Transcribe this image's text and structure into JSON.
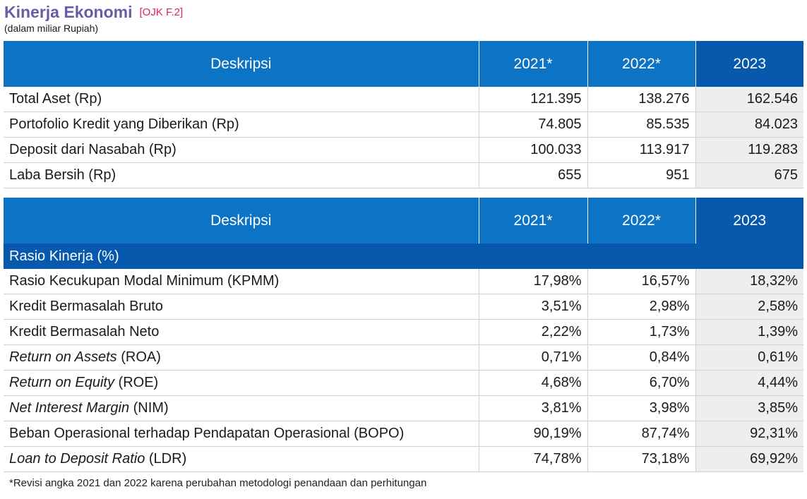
{
  "header": {
    "title": "Kinerja Ekonomi",
    "tag": "[OJK F.2]",
    "subtitle": "(dalam miliar Rupiah)"
  },
  "table1": {
    "columns": [
      "Deskripsi",
      "2021*",
      "2022*",
      "2023"
    ],
    "rows": [
      {
        "label": "Total Aset (Rp)",
        "values": [
          "121.395",
          "138.276",
          "162.546"
        ]
      },
      {
        "label": "Portofolio Kredit yang Diberikan (Rp)",
        "values": [
          "74.805",
          "85.535",
          "84.023"
        ]
      },
      {
        "label": "Deposit dari Nasabah (Rp)",
        "values": [
          "100.033",
          "113.917",
          "119.283"
        ]
      },
      {
        "label": "Laba Bersih (Rp)",
        "values": [
          "655",
          "951",
          "675"
        ]
      }
    ]
  },
  "table2": {
    "columns": [
      "Deskripsi",
      "2021*",
      "2022*",
      "2023"
    ],
    "section_label": "Rasio Kinerja (%)",
    "rows": [
      {
        "label": "Rasio Kecukupan Modal Minimum (KPMM)",
        "values": [
          "17,98%",
          "16,57%",
          "18,32%"
        ]
      },
      {
        "label": "Kredit Bermasalah Bruto",
        "values": [
          "3,51%",
          "2,98%",
          "2,58%"
        ]
      },
      {
        "label": "Kredit Bermasalah Neto",
        "values": [
          "2,22%",
          "1,73%",
          "1,39%"
        ]
      },
      {
        "label_italic": "Return on Assets",
        "label_rest": " (ROA)",
        "values": [
          "0,71%",
          "0,84%",
          "0,61%"
        ]
      },
      {
        "label_italic": "Return on Equity",
        "label_rest": " (ROE)",
        "values": [
          "4,68%",
          "6,70%",
          "4,44%"
        ]
      },
      {
        "label_italic": "Net Interest Margin",
        "label_rest": " (NIM)",
        "values": [
          "3,81%",
          "3,98%",
          "3,85%"
        ]
      },
      {
        "label": "Beban Operasional terhadap Pendapatan Operasional (BOPO)",
        "values": [
          "90,19%",
          "87,74%",
          "92,31%"
        ]
      },
      {
        "label_italic": "Loan to Deposit Ratio",
        "label_rest": " (LDR)",
        "values": [
          "74,78%",
          "73,18%",
          "69,92%"
        ]
      }
    ]
  },
  "footnote": "*Revisi angka 2021 dan 2022 karena perubahan metodologi penandaan dan perhitungan",
  "colors": {
    "header_blue": "#0d73c4",
    "highlight_blue": "#0659ad",
    "title_purple": "#6a5ba8",
    "tag_pink": "#e0245e",
    "highlight_cell_gray": "#eeeeee"
  }
}
